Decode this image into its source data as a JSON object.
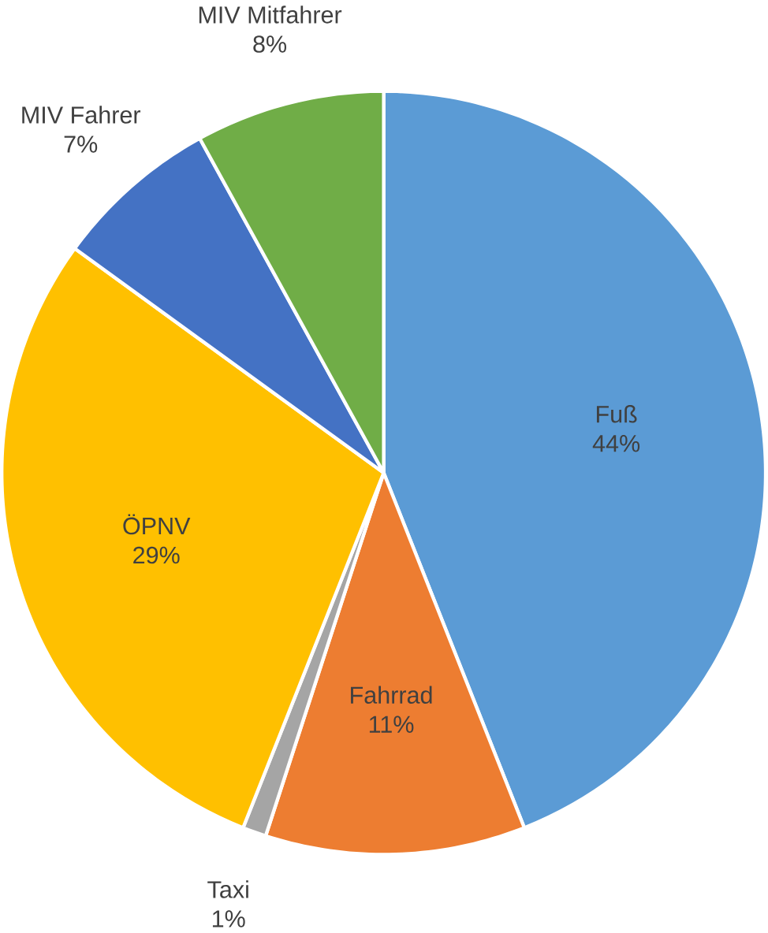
{
  "chart_data": {
    "type": "pie",
    "categories": [
      "Fuß",
      "Fahrrad",
      "Taxi",
      "ÖPNV",
      "MIV Fahrer",
      "MIV Mitfahrer"
    ],
    "values": [
      44,
      11,
      1,
      29,
      7,
      8
    ],
    "value_labels": [
      "44%",
      "11%",
      "1%",
      "29%",
      "7%",
      "8%"
    ],
    "colors": [
      "#5b9bd5",
      "#ed7d31",
      "#a5a5a5",
      "#ffc000",
      "#4472c4",
      "#70ad47"
    ]
  }
}
